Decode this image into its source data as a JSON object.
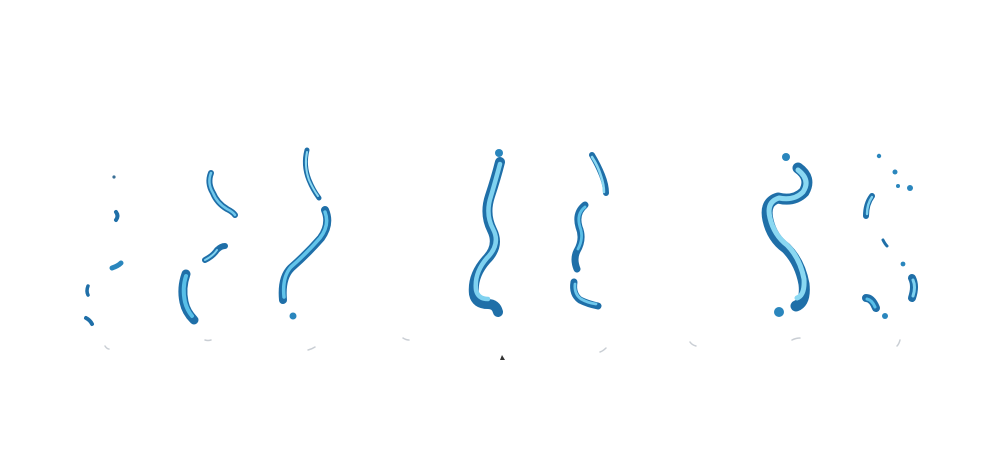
{
  "image": {
    "subject": "water-splash-streams",
    "background_color": "#ffffff",
    "colors": {
      "water_dark": "#1f6fa8",
      "water_mid": "#3aa6dc",
      "water_light": "#9fe0f5",
      "water_edge": "#0e3d66",
      "shadow": "#c9ced4"
    }
  }
}
